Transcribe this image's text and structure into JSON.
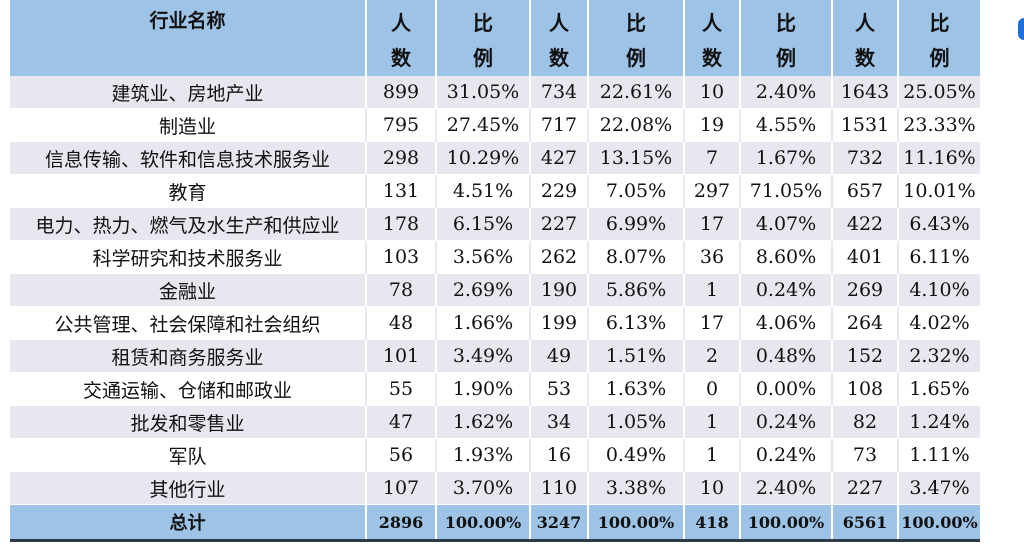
{
  "table": {
    "header": {
      "name": "行业名称",
      "cols": [
        {
          "top": "人",
          "bottom": "数"
        },
        {
          "top": "比",
          "bottom": "例"
        },
        {
          "top": "人",
          "bottom": "数"
        },
        {
          "top": "比",
          "bottom": "例"
        },
        {
          "top": "人",
          "bottom": "数"
        },
        {
          "top": "比",
          "bottom": "例"
        },
        {
          "top": "人",
          "bottom": "数"
        },
        {
          "top": "比",
          "bottom": "例"
        }
      ]
    },
    "rows": [
      {
        "name": "建筑业、房地产业",
        "v": [
          "899",
          "31.05%",
          "734",
          "22.61%",
          "10",
          "2.40%",
          "1643",
          "25.05%"
        ]
      },
      {
        "name": "制造业",
        "v": [
          "795",
          "27.45%",
          "717",
          "22.08%",
          "19",
          "4.55%",
          "1531",
          "23.33%"
        ]
      },
      {
        "name": "信息传输、软件和信息技术服务业",
        "v": [
          "298",
          "10.29%",
          "427",
          "13.15%",
          "7",
          "1.67%",
          "732",
          "11.16%"
        ]
      },
      {
        "name": "教育",
        "v": [
          "131",
          "4.51%",
          "229",
          "7.05%",
          "297",
          "71.05%",
          "657",
          "10.01%"
        ]
      },
      {
        "name": "电力、热力、燃气及水生产和供应业",
        "v": [
          "178",
          "6.15%",
          "227",
          "6.99%",
          "17",
          "4.07%",
          "422",
          "6.43%"
        ]
      },
      {
        "name": "科学研究和技术服务业",
        "v": [
          "103",
          "3.56%",
          "262",
          "8.07%",
          "36",
          "8.60%",
          "401",
          "6.11%"
        ]
      },
      {
        "name": "金融业",
        "v": [
          "78",
          "2.69%",
          "190",
          "5.86%",
          "1",
          "0.24%",
          "269",
          "4.10%"
        ]
      },
      {
        "name": "公共管理、社会保障和社会组织",
        "v": [
          "48",
          "1.66%",
          "199",
          "6.13%",
          "17",
          "4.06%",
          "264",
          "4.02%"
        ]
      },
      {
        "name": "租赁和商务服务业",
        "v": [
          "101",
          "3.49%",
          "49",
          "1.51%",
          "2",
          "0.48%",
          "152",
          "2.32%"
        ]
      },
      {
        "name": "交通运输、仓储和邮政业",
        "v": [
          "55",
          "1.90%",
          "53",
          "1.63%",
          "0",
          "0.00%",
          "108",
          "1.65%"
        ]
      },
      {
        "name": "批发和零售业",
        "v": [
          "47",
          "1.62%",
          "34",
          "1.05%",
          "1",
          "0.24%",
          "82",
          "1.24%"
        ]
      },
      {
        "name": "军队",
        "v": [
          "56",
          "1.93%",
          "16",
          "0.49%",
          "1",
          "0.24%",
          "73",
          "1.11%"
        ]
      },
      {
        "name": "其他行业",
        "v": [
          "107",
          "3.70%",
          "110",
          "3.38%",
          "10",
          "2.40%",
          "227",
          "3.47%"
        ]
      }
    ],
    "total": {
      "name": "总计",
      "v": [
        "2896",
        "100.00%",
        "3247",
        "100.00%",
        "418",
        "100.00%",
        "6561",
        "100.00%"
      ]
    }
  },
  "colors": {
    "header_bg": "#9dc3e6",
    "stripe_bg": "#e7e7f0",
    "rule": "#2f3a48"
  }
}
